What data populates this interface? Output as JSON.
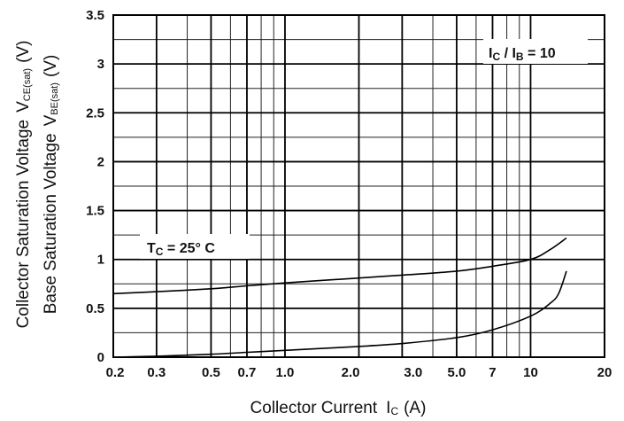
{
  "chart_data": {
    "type": "line",
    "xlabel": "Collector Current",
    "xlabel_symbol": "I",
    "xlabel_symbol_sub": "C",
    "xlabel_unit": "(A)",
    "ylabel_line1": "Collector Saturation Voltage",
    "ylabel_line1_symbol": "V",
    "ylabel_line1_sub": "CE(sat)",
    "ylabel_line1_unit": "(V)",
    "ylabel_line2": "Base Saturation Voltage",
    "ylabel_line2_symbol": "V",
    "ylabel_line2_sub": "BE(sat)",
    "ylabel_line2_unit": "(V)",
    "x_scale": "log",
    "xlim": [
      0.2,
      20
    ],
    "ylim": [
      0,
      3.5
    ],
    "x_ticks": [
      {
        "value": 0.2,
        "label": "0.2"
      },
      {
        "value": 0.3,
        "label": "0.3"
      },
      {
        "value": 0.5,
        "label": "0.5"
      },
      {
        "value": 0.7,
        "label": "0.7"
      },
      {
        "value": 1.0,
        "label": "1.0"
      },
      {
        "value": 2.0,
        "label": "2.0"
      },
      {
        "value": 3.0,
        "label": "3.0"
      },
      {
        "value": 5.0,
        "label": "5.0"
      },
      {
        "value": 7,
        "label": "7"
      },
      {
        "value": 10,
        "label": "10"
      },
      {
        "value": 20,
        "label": "20"
      }
    ],
    "x_minor_grid": [
      0.4,
      0.6,
      0.8,
      0.9,
      4,
      6,
      8,
      9
    ],
    "y_ticks": [
      {
        "value": 0,
        "label": "0"
      },
      {
        "value": 0.5,
        "label": "0.5"
      },
      {
        "value": 1,
        "label": "1"
      },
      {
        "value": 1.5,
        "label": "1.5"
      },
      {
        "value": 2,
        "label": "2"
      },
      {
        "value": 2.5,
        "label": "2.5"
      },
      {
        "value": 3,
        "label": "3"
      },
      {
        "value": 3.5,
        "label": "3.5"
      }
    ],
    "y_minor_grid": [
      0.25,
      0.75,
      1.25,
      1.75,
      2.25,
      2.75,
      3.25
    ],
    "grid": true,
    "series": [
      {
        "x": [
          0.2,
          0.3,
          0.5,
          0.7,
          1.0,
          2.0,
          3.0,
          5.0,
          7,
          10,
          12,
          14
        ],
        "y": [
          0.65,
          0.67,
          0.7,
          0.73,
          0.76,
          0.81,
          0.84,
          0.88,
          0.93,
          1.0,
          1.1,
          1.22
        ]
      },
      {
        "x": [
          0.2,
          0.3,
          0.5,
          0.7,
          1.0,
          2.0,
          3.0,
          5.0,
          7,
          10,
          12,
          13,
          14
        ],
        "y": [
          0.0,
          0.01,
          0.03,
          0.05,
          0.07,
          0.11,
          0.14,
          0.2,
          0.28,
          0.42,
          0.55,
          0.65,
          0.88
        ]
      }
    ],
    "annotations": {
      "ratio": {
        "main1": "I",
        "sub1": "C",
        "mid": " / I",
        "sub2": "B",
        "tail": " = 10"
      },
      "temp": {
        "main": "T",
        "sub": "C",
        "tail": " = 25° C"
      }
    }
  }
}
